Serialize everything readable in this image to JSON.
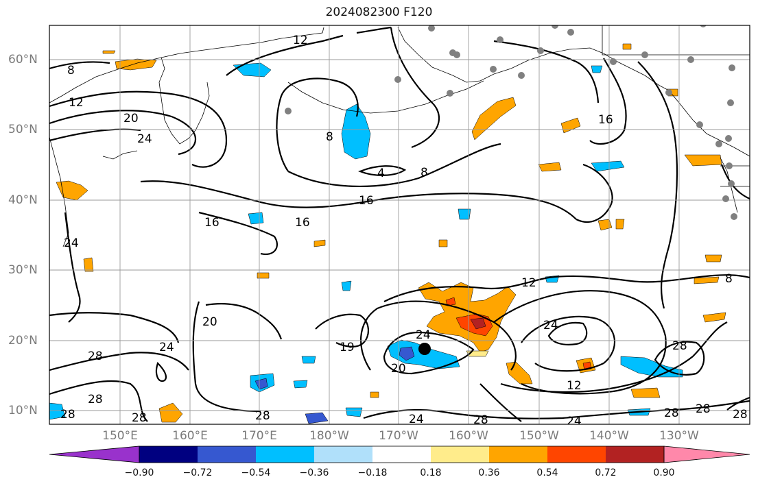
{
  "title": "2024082300 F120",
  "latitude_labels": [
    "60°N",
    "50°N",
    "40°N",
    "30°N",
    "20°N",
    "10°N"
  ],
  "longitude_labels": [
    "150°E",
    "160°E",
    "170°E",
    "180°W",
    "170°W",
    "160°W",
    "150°W",
    "140°W",
    "130°W"
  ],
  "contour_labels": [
    "4",
    "8",
    "8",
    "8",
    "8",
    "12",
    "12",
    "12",
    "12",
    "16",
    "16",
    "16",
    "16",
    "19",
    "20",
    "20",
    "20",
    "24",
    "24",
    "24",
    "24",
    "24",
    "24",
    "24",
    "28",
    "28",
    "28",
    "28",
    "28",
    "28",
    "28"
  ],
  "colorbar": {
    "tick_labels": [
      "−0.90",
      "−0.72",
      "−0.54",
      "−0.36",
      "−0.18",
      "0.18",
      "0.36",
      "0.54",
      "0.72",
      "0.90"
    ],
    "colors": [
      "#9932cc",
      "#000080",
      "#3658d0",
      "#00bfff",
      "#b0e0fa",
      "#ffffff",
      "#ffec8b",
      "#ffa500",
      "#ff4500",
      "#b22222",
      "#ff88aa"
    ]
  },
  "fill_colors": {
    "light_blue": "#b0e0fa",
    "cyan": "#00bfff",
    "blue": "#3658d0",
    "navy": "#000080",
    "yellow": "#ffec8b",
    "orange": "#ffa500",
    "red_orange": "#ff4500",
    "dark_red": "#b22222"
  }
}
